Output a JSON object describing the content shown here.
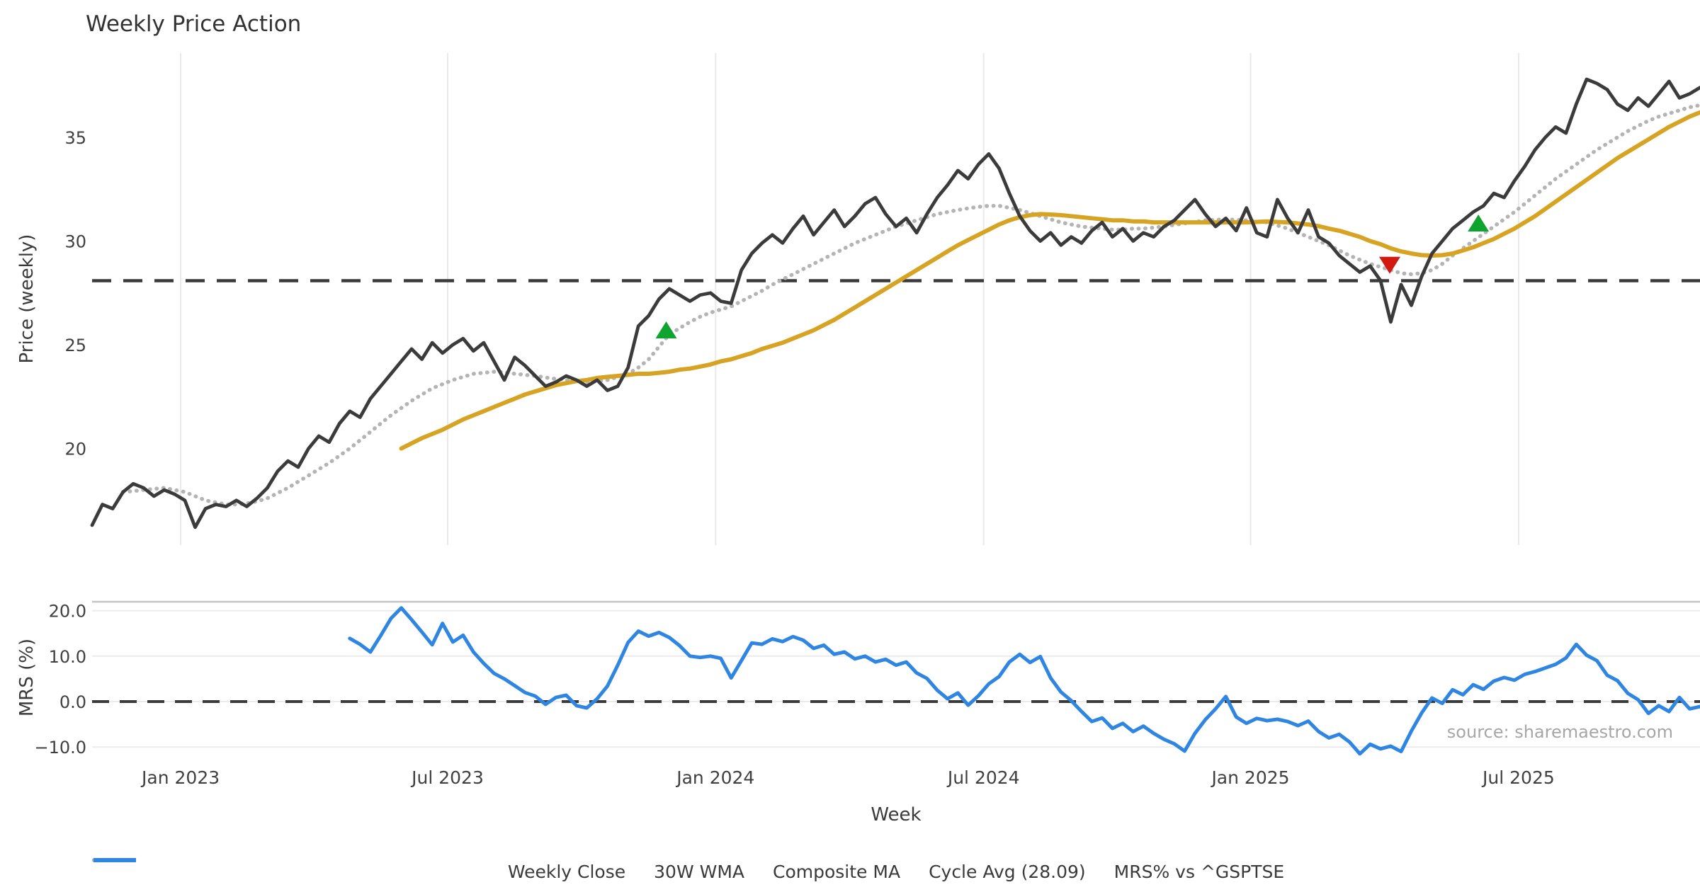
{
  "title": "Weekly Price Action",
  "xlabel": "Week",
  "source_note": "source: sharemaestro.com",
  "colors": {
    "close": "#3b3b3b",
    "wma": "#d7a322",
    "composite": "#b4b4b4",
    "cycle_avg": "#3b3b3b",
    "mrs": "#2e86e2",
    "buy_marker": "#0fa42e",
    "sell_marker": "#d21a10",
    "grid": "#e9e9e9",
    "hgrid": "#ececec",
    "spine": "#c4c4c4",
    "background": "#ffffff"
  },
  "legend": [
    {
      "label": "Weekly Close",
      "style": "solid",
      "color": "#3b3b3b"
    },
    {
      "label": "30W WMA",
      "style": "solid",
      "color": "#d7a322"
    },
    {
      "label": "Composite MA",
      "style": "dotted",
      "color": "#b4b4b4"
    },
    {
      "label": "Cycle Avg (28.09)",
      "style": "dashed",
      "color": "#3b3b3b"
    },
    {
      "label": "MRS% vs ^GSPTSE",
      "style": "solid",
      "color": "#2e86e2"
    }
  ],
  "chart_data": {
    "type": "line",
    "x_unit": "weekly (week index from chart start, ~Nov 2022)",
    "x_axis": {
      "label": "Week",
      "ticks": [
        {
          "label": "Jan 2023",
          "week": 8.6
        },
        {
          "label": "Jul 2023",
          "week": 34.5
        },
        {
          "label": "Jan 2024",
          "week": 60.5
        },
        {
          "label": "Jul 2024",
          "week": 86.5
        },
        {
          "label": "Jan 2025",
          "week": 112.4
        },
        {
          "label": "Jul 2025",
          "week": 138.4
        }
      ]
    },
    "panels": [
      {
        "id": "price",
        "ylabel": "Price (weekly)",
        "ylim": [
          15.3,
          39.1
        ],
        "grid": "vertical-only",
        "yticks": [
          {
            "label": "35",
            "value": 35
          },
          {
            "label": "30",
            "value": 30
          },
          {
            "label": "25",
            "value": 25
          },
          {
            "label": "20",
            "value": 20
          }
        ],
        "hline": {
          "name": "Cycle Avg",
          "value": 28.09,
          "style": "dashed",
          "color": "#3b3b3b"
        },
        "series": [
          {
            "name": "Weekly Close",
            "style": "solid",
            "color": "#3b3b3b",
            "width": 4.8,
            "start_week": 0,
            "values": [
              16.3,
              17.3,
              17.1,
              17.9,
              18.3,
              18.1,
              17.7,
              18.0,
              17.8,
              17.5,
              16.2,
              17.1,
              17.3,
              17.2,
              17.5,
              17.2,
              17.6,
              18.1,
              18.9,
              19.4,
              19.1,
              20.0,
              20.6,
              20.3,
              21.2,
              21.8,
              21.5,
              22.4,
              23.0,
              23.6,
              24.2,
              24.8,
              24.3,
              25.1,
              24.6,
              25.0,
              25.3,
              24.7,
              25.1,
              24.2,
              23.3,
              24.4,
              24.0,
              23.5,
              23.0,
              23.2,
              23.5,
              23.3,
              23.0,
              23.3,
              22.8,
              23.0,
              23.9,
              25.9,
              26.4,
              27.2,
              27.7,
              27.4,
              27.1,
              27.4,
              27.5,
              27.1,
              27.0,
              28.6,
              29.4,
              29.9,
              30.3,
              29.9,
              30.6,
              31.2,
              30.3,
              30.9,
              31.5,
              30.7,
              31.2,
              31.8,
              32.1,
              31.3,
              30.7,
              31.1,
              30.4,
              31.3,
              32.1,
              32.7,
              33.4,
              33.0,
              33.7,
              34.2,
              33.5,
              32.3,
              31.2,
              30.5,
              30.0,
              30.4,
              29.8,
              30.2,
              29.9,
              30.5,
              30.9,
              30.2,
              30.6,
              30.0,
              30.4,
              30.2,
              30.7,
              31.0,
              31.5,
              32.0,
              31.3,
              30.7,
              31.1,
              30.5,
              31.6,
              30.4,
              30.2,
              32.0,
              31.1,
              30.4,
              31.5,
              30.2,
              29.9,
              29.3,
              28.9,
              28.5,
              28.8,
              28.1,
              26.1,
              27.9,
              26.9,
              28.3,
              29.4,
              30.0,
              30.6,
              31.0,
              31.4,
              31.7,
              32.3,
              32.1,
              32.9,
              33.6,
              34.4,
              35.0,
              35.5,
              35.2,
              36.6,
              37.8,
              37.6,
              37.3,
              36.6,
              36.3,
              36.9,
              36.5,
              37.1,
              37.7,
              36.9,
              37.1,
              37.4
            ]
          },
          {
            "name": "30W WMA",
            "style": "solid",
            "color": "#d7a322",
            "width": 6,
            "start_week": 30,
            "values": [
              20.0,
              20.25,
              20.5,
              20.7,
              20.9,
              21.15,
              21.4,
              21.6,
              21.8,
              22.0,
              22.2,
              22.4,
              22.6,
              22.75,
              22.9,
              23.05,
              23.15,
              23.25,
              23.3,
              23.4,
              23.45,
              23.5,
              23.55,
              23.6,
              23.6,
              23.65,
              23.7,
              23.8,
              23.85,
              23.95,
              24.05,
              24.2,
              24.3,
              24.45,
              24.6,
              24.8,
              24.95,
              25.1,
              25.3,
              25.5,
              25.7,
              25.95,
              26.2,
              26.5,
              26.8,
              27.1,
              27.4,
              27.7,
              28.0,
              28.3,
              28.6,
              28.9,
              29.2,
              29.5,
              29.8,
              30.05,
              30.3,
              30.55,
              30.8,
              31.0,
              31.15,
              31.25,
              31.3,
              31.28,
              31.25,
              31.2,
              31.15,
              31.1,
              31.05,
              31.0,
              31.0,
              30.95,
              30.95,
              30.9,
              30.9,
              30.9,
              30.9,
              30.9,
              30.9,
              30.9,
              30.9,
              30.9,
              30.9,
              30.92,
              30.95,
              30.92,
              30.9,
              30.85,
              30.8,
              30.72,
              30.6,
              30.5,
              30.35,
              30.2,
              30.0,
              29.85,
              29.65,
              29.5,
              29.4,
              29.32,
              29.3,
              29.32,
              29.4,
              29.55,
              29.7,
              29.9,
              30.1,
              30.35,
              30.6,
              30.9,
              31.2,
              31.55,
              31.9,
              32.25,
              32.6,
              32.95,
              33.3,
              33.65,
              34.0,
              34.3,
              34.6,
              34.9,
              35.2,
              35.5,
              35.75,
              36.0,
              36.2
            ]
          },
          {
            "name": "Composite MA",
            "style": "dotted",
            "color": "#b4b4b4",
            "width": 5.5,
            "start_week": 3,
            "values": [
              17.9,
              17.95,
              18.0,
              18.05,
              18.1,
              18.0,
              17.9,
              17.7,
              17.5,
              17.4,
              17.3,
              17.3,
              17.35,
              17.45,
              17.6,
              17.85,
              18.1,
              18.4,
              18.7,
              19.0,
              19.3,
              19.65,
              20.0,
              20.4,
              20.8,
              21.2,
              21.6,
              21.95,
              22.3,
              22.6,
              22.9,
              23.1,
              23.3,
              23.45,
              23.6,
              23.65,
              23.7,
              23.68,
              23.6,
              23.55,
              23.5,
              23.42,
              23.35,
              23.3,
              23.25,
              23.2,
              23.25,
              23.3,
              23.45,
              23.6,
              23.9,
              24.3,
              24.9,
              25.5,
              25.8,
              26.1,
              26.35,
              26.55,
              26.7,
              26.85,
              27.1,
              27.35,
              27.6,
              27.9,
              28.15,
              28.4,
              28.65,
              28.9,
              29.15,
              29.4,
              29.65,
              29.9,
              30.1,
              30.3,
              30.5,
              30.7,
              30.85,
              31.0,
              31.15,
              31.3,
              31.4,
              31.5,
              31.58,
              31.65,
              31.7,
              31.7,
              31.6,
              31.5,
              31.35,
              31.2,
              31.05,
              30.9,
              30.8,
              30.7,
              30.65,
              30.6,
              30.55,
              30.55,
              30.6,
              30.6,
              30.65,
              30.7,
              30.78,
              30.85,
              30.92,
              31.0,
              31.02,
              31.05,
              31.02,
              31.0,
              30.95,
              30.9,
              30.75,
              30.6,
              30.4,
              30.2,
              30.0,
              29.8,
              29.55,
              29.3,
              29.1,
              28.9,
              28.75,
              28.6,
              28.45,
              28.4,
              28.45,
              28.6,
              28.9,
              29.3,
              29.65,
              30.0,
              30.35,
              30.7,
              31.05,
              31.4,
              31.8,
              32.2,
              32.6,
              33.0,
              33.35,
              33.7,
              34.05,
              34.4,
              34.7,
              35.0,
              35.3,
              35.55,
              35.8,
              36.0,
              36.15,
              36.3,
              36.45,
              36.55
            ]
          }
        ],
        "markers": {
          "buy": {
            "shape": "triangle-up",
            "color": "#0fa42e",
            "points": [
              {
                "week": 55.7,
                "price": 25.65
              },
              {
                "week": 134.5,
                "price": 30.8
              }
            ]
          },
          "sell": {
            "shape": "triangle-down",
            "color": "#d21a10",
            "points": [
              {
                "week": 125.9,
                "price": 28.9
              }
            ]
          }
        }
      },
      {
        "id": "mrs",
        "ylabel": "MRS (%)",
        "ylim": [
          -11.8,
          22.0
        ],
        "grid": "horizontal-only",
        "yticks": [
          {
            "label": "20.0",
            "value": 20
          },
          {
            "label": "10.0",
            "value": 10
          },
          {
            "label": "0.0",
            "value": 0
          },
          {
            "label": "−10.0",
            "value": -10
          }
        ],
        "hline": {
          "name": "Zero",
          "value": 0,
          "style": "dashed",
          "color": "#3b3b3b"
        },
        "series": [
          {
            "name": "MRS% vs ^GSPTSE",
            "style": "solid",
            "color": "#2e86e2",
            "width": 5,
            "start_week": 25,
            "values": [
              13.9,
              12.6,
              10.9,
              14.5,
              18.3,
              20.6,
              18.0,
              15.3,
              12.5,
              17.2,
              13.1,
              14.6,
              10.9,
              8.4,
              6.2,
              5.0,
              3.5,
              2.0,
              1.2,
              -0.6,
              0.9,
              1.4,
              -0.9,
              -1.4,
              0.6,
              3.4,
              8.0,
              13.0,
              15.5,
              14.4,
              15.2,
              14.1,
              12.3,
              10.0,
              9.7,
              10.0,
              9.5,
              5.2,
              9.0,
              12.9,
              12.6,
              13.8,
              13.2,
              14.3,
              13.5,
              11.7,
              12.4,
              10.4,
              10.9,
              9.4,
              10.0,
              8.7,
              9.3,
              8.0,
              8.7,
              6.3,
              5.1,
              2.5,
              0.6,
              1.9,
              -0.8,
              1.3,
              3.9,
              5.5,
              8.7,
              10.4,
              8.6,
              9.9,
              5.2,
              2.1,
              0.2,
              -2.2,
              -4.4,
              -3.6,
              -5.9,
              -4.8,
              -6.6,
              -5.4,
              -7.0,
              -8.3,
              -9.3,
              -10.9,
              -7.0,
              -4.0,
              -1.6,
              1.1,
              -3.4,
              -4.8,
              -3.7,
              -4.2,
              -3.9,
              -4.4,
              -5.3,
              -4.3,
              -6.6,
              -8.0,
              -7.2,
              -8.9,
              -11.5,
              -9.4,
              -10.4,
              -9.8,
              -11.0,
              -6.5,
              -2.5,
              0.8,
              -0.4,
              2.6,
              1.5,
              3.7,
              2.7,
              4.5,
              5.3,
              4.7,
              6.0,
              6.6,
              7.4,
              8.2,
              9.6,
              12.6,
              10.2,
              9.0,
              5.8,
              4.6,
              1.8,
              0.4,
              -2.6,
              -0.9,
              -2.2,
              0.9,
              -1.6,
              -1.1
            ]
          }
        ],
        "annotation": "source: sharemaestro.com"
      }
    ]
  }
}
